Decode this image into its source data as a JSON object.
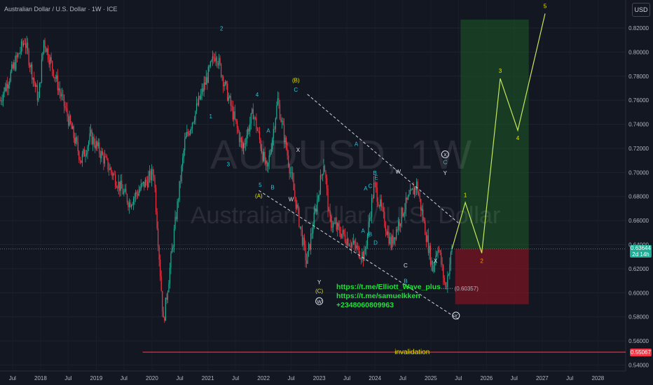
{
  "header": {
    "title": "Australian Dollar / U.S. Dollar · 1W · ICE",
    "currency_button": "USD"
  },
  "watermark": {
    "symbol": "AUDUSD, 1W",
    "name": "Australian Dollar / U.S. Dollar"
  },
  "links": [
    "https://t.me/Elliott_Wave_plus",
    "https://t.me/samuelkken",
    "+2348060809963"
  ],
  "current_price": {
    "value": "0.63644",
    "countdown": "2d 14h",
    "color": "#22ab94"
  },
  "invalidation": {
    "label": "invalidation",
    "price": 0.55067,
    "price_label": "0.55067",
    "color": "#f23645"
  },
  "target_level": {
    "label": "(0.60357)",
    "price": 0.60357
  },
  "colors": {
    "background": "#131722",
    "up": "#22ab94",
    "down": "#f23645",
    "wave_yellow": "#e6e600",
    "wave_cyan": "#26c6da",
    "projection": "#c8e65a",
    "target_zone": "#1e5a24",
    "stop_zone": "#7a1522"
  },
  "chart_data": {
    "type": "line",
    "title": "AUDUSD, 1W",
    "x_axis_type": "date",
    "x_ticks": [
      "Jul",
      "2018",
      "Jul",
      "2019",
      "Jul",
      "2020",
      "Jul",
      "2021",
      "Jul",
      "2022",
      "Jul",
      "2023",
      "Jul",
      "2024",
      "Jul",
      "2025",
      "Jul",
      "2026",
      "Jul",
      "2027",
      "Jul",
      "2028"
    ],
    "y_ticks": [
      "0.82000",
      "0.80000",
      "0.78000",
      "0.76000",
      "0.74000",
      "0.72000",
      "0.70000",
      "0.68000",
      "0.66000",
      "0.64000",
      "0.62000",
      "0.60000",
      "0.58000",
      "0.56000",
      "0.54000"
    ],
    "ylim": [
      0.535,
      0.827
    ],
    "xlim": [
      "2017-04-10",
      "2028-07-01"
    ],
    "series": [
      {
        "name": "",
        "x": [
          "2017-04-10",
          "2017-09-18",
          "2017-12-18",
          "2018-01-22",
          "2018-09-24",
          "2018-11-26",
          "2019-08-05",
          "2020-01-13",
          "2020-03-16",
          "2020-08-03",
          "2021-02-22",
          "2021-08-16",
          "2021-10-25",
          "2022-01-24",
          "2022-04-04",
          "2022-10-10",
          "2023-02-01",
          "2023-03-08",
          "2023-10-23",
          "2023-12-27",
          "2024-04-15",
          "2024-07-08",
          "2024-09-30",
          "2025-01-13",
          "2025-02-17",
          "2025-04-07",
          "2025-05-20"
        ],
        "y": [
          0.76,
          0.81,
          0.76,
          0.81,
          0.71,
          0.73,
          0.675,
          0.7,
          0.575,
          0.725,
          0.8,
          0.72,
          0.75,
          0.7,
          0.76,
          0.625,
          0.71,
          0.66,
          0.63,
          0.69,
          0.64,
          0.67,
          0.69,
          0.62,
          0.64,
          0.60357,
          0.63644
        ]
      }
    ],
    "channel_upper": {
      "x": [
        "2022-10-15",
        "2025-07-01"
      ],
      "y": [
        0.765,
        0.658
      ]
    },
    "channel_lower": {
      "x": [
        "2021-12-01",
        "2025-07-01"
      ],
      "y": [
        0.685,
        0.578
      ]
    },
    "projection": {
      "x": [
        "2025-05-20",
        "2025-08-15",
        "2025-12-01",
        "2026-04-01",
        "2026-07-25",
        "2027-01-20"
      ],
      "y": [
        0.63644,
        0.675,
        0.633,
        0.778,
        0.735,
        0.832
      ],
      "labels": [
        "",
        "1",
        "2",
        "3",
        "4",
        "5"
      ]
    },
    "zones": [
      {
        "kind": "target",
        "x": [
          "2025-07-15",
          "2026-10-05"
        ],
        "y": [
          0.63644,
          0.827
        ]
      },
      {
        "kind": "stop",
        "x": [
          "2025-06-10",
          "2026-10-05"
        ],
        "y": [
          0.5905,
          0.63644
        ]
      }
    ],
    "wave_labels": [
      {
        "text": "2",
        "x": "2021-04-01",
        "y": 0.818,
        "color": "cyan"
      },
      {
        "text": "1",
        "x": "2021-01-20",
        "y": 0.745,
        "color": "cyan"
      },
      {
        "text": "4",
        "x": "2021-11-20",
        "y": 0.763,
        "color": "cyan"
      },
      {
        "text": "3",
        "x": "2021-05-15",
        "y": 0.705,
        "color": "cyan"
      },
      {
        "text": "A",
        "x": "2022-02-01",
        "y": 0.733,
        "color": "cyan"
      },
      {
        "text": "5",
        "x": "2021-12-10",
        "y": 0.688,
        "color": "cyan"
      },
      {
        "text": "B",
        "x": "2022-03-01",
        "y": 0.686,
        "color": "cyan"
      },
      {
        "text": "(A)",
        "x": "2021-12-01",
        "y": 0.679,
        "color": "yellow"
      },
      {
        "text": "(B)",
        "x": "2022-08-01",
        "y": 0.775,
        "color": "yellow"
      },
      {
        "text": "C",
        "x": "2022-08-01",
        "y": 0.767,
        "color": "cyan"
      },
      {
        "text": "X",
        "x": "2022-08-15",
        "y": 0.717,
        "color": "white"
      },
      {
        "text": "W",
        "x": "2022-07-01",
        "y": 0.676,
        "color": "white"
      },
      {
        "text": "Y",
        "x": "2023-01-01",
        "y": 0.607,
        "color": "white"
      },
      {
        "text": "(C)",
        "x": "2023-01-01",
        "y": 0.6,
        "color": "yellow"
      },
      {
        "text": "A",
        "x": "2023-09-01",
        "y": 0.722,
        "color": "cyan"
      },
      {
        "text": "B",
        "x": "2024-01-01",
        "y": 0.698,
        "color": "cyan"
      },
      {
        "text": "E",
        "x": "2024-01-10",
        "y": 0.694,
        "color": "cyan"
      },
      {
        "text": "A",
        "x": "2023-11-01",
        "y": 0.685,
        "color": "cyan"
      },
      {
        "text": "C",
        "x": "2023-12-01",
        "y": 0.687,
        "color": "cyan"
      },
      {
        "text": "A",
        "x": "2023-10-15",
        "y": 0.65,
        "color": "cyan"
      },
      {
        "text": "B",
        "x": "2023-12-01",
        "y": 0.647,
        "color": "cyan"
      },
      {
        "text": "D",
        "x": "2024-01-05",
        "y": 0.64,
        "color": "cyan"
      },
      {
        "text": "W",
        "x": "2024-06-01",
        "y": 0.699,
        "color": "white"
      },
      {
        "text": "C",
        "x": "2024-07-20",
        "y": 0.621,
        "color": "white"
      },
      {
        "text": "B",
        "x": "2024-07-20",
        "y": 0.608,
        "color": "cyan"
      },
      {
        "text": "C",
        "x": "2025-04-05",
        "y": 0.707,
        "color": "cyan"
      },
      {
        "text": "Y",
        "x": "2025-04-05",
        "y": 0.698,
        "color": "white"
      },
      {
        "text": "X",
        "x": "2025-02-01",
        "y": 0.625,
        "color": "white"
      }
    ],
    "circled_labels": [
      {
        "text": "W",
        "x": "2023-01-01",
        "y": 0.593
      },
      {
        "text": "X",
        "x": "2025-04-05",
        "y": 0.715
      },
      {
        "text": "Y",
        "x": "2025-06-15",
        "y": 0.581
      }
    ]
  }
}
